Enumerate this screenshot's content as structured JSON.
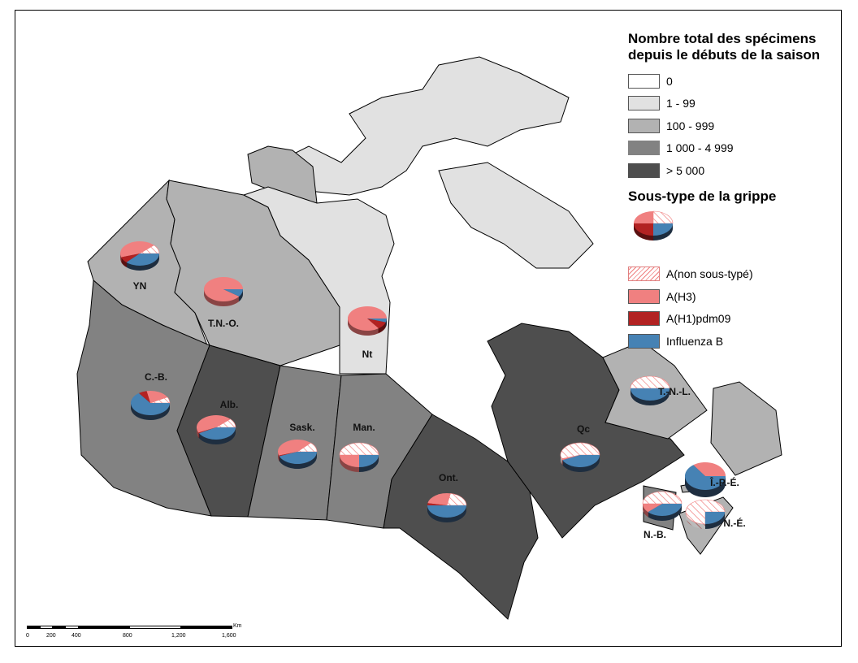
{
  "legend": {
    "title": "Nombre total des spécimens depuis le débuts de la saison",
    "title_line1": "Nombre total des spécimens",
    "title_line2": "depuis le débuts de la saison",
    "classes": [
      {
        "label": "0",
        "color": "#ffffff"
      },
      {
        "label": "1 - 99",
        "color": "#e1e1e1"
      },
      {
        "label": "100 - 999",
        "color": "#b2b2b2"
      },
      {
        "label": "1 000 - 4 999",
        "color": "#828282"
      },
      {
        "label": "> 5 000",
        "color": "#4e4e4e"
      }
    ],
    "subtype_title": "Sous-type de la grippe",
    "subtypes": [
      {
        "label": "A(non sous-typé)",
        "color": "#f08080",
        "pattern": "hatched"
      },
      {
        "label": "A(H3)",
        "color": "#f08080"
      },
      {
        "label": "A(H1)pdm09",
        "color": "#b22222"
      },
      {
        "label": "Influenza B",
        "color": "#4682b4"
      }
    ]
  },
  "regions": [
    {
      "id": "YN",
      "label": "YN",
      "class": "100 - 999",
      "pie": [
        0.12,
        0.43,
        0.08,
        0.37
      ]
    },
    {
      "id": "TNO",
      "label": "T.N.-O.",
      "class": "100 - 999",
      "pie": [
        0,
        0.9,
        0,
        0.1
      ]
    },
    {
      "id": "Nt",
      "label": "Nt",
      "class": "1 - 99",
      "pie": [
        0,
        0.85,
        0.1,
        0.05
      ]
    },
    {
      "id": "CB",
      "label": "C.-B.",
      "class": "1 000 - 4 999",
      "pie": [
        0.08,
        0.2,
        0.07,
        0.65
      ]
    },
    {
      "id": "Alb",
      "label": "Alb.",
      "class": "> 5 000",
      "pie": [
        0.12,
        0.45,
        0.01,
        0.42
      ]
    },
    {
      "id": "Sask",
      "label": "Sask.",
      "class": "1 000 - 4 999",
      "pie": [
        0.13,
        0.42,
        0.01,
        0.44
      ]
    },
    {
      "id": "Man",
      "label": "Man.",
      "class": "1 000 - 4 999",
      "pie": [
        0.5,
        0.25,
        0,
        0.25
      ]
    },
    {
      "id": "Ont",
      "label": "Ont.",
      "class": "> 5 000",
      "pie": [
        0.22,
        0.25,
        0.03,
        0.5
      ]
    },
    {
      "id": "Qc",
      "label": "Qc",
      "class": "> 5 000",
      "pie": [
        0.55,
        0.02,
        0,
        0.43
      ]
    },
    {
      "id": "TNL",
      "label": "T.-N.-L.",
      "class": "100 - 999",
      "pie": [
        0.5,
        0,
        0,
        0.5
      ]
    },
    {
      "id": "IPE",
      "label": "Î.-P.-É.",
      "class": "100 - 999",
      "pie": [
        0,
        0.35,
        0,
        0.65
      ]
    },
    {
      "id": "NB",
      "label": "N.-B.",
      "class": "1 000 - 4 999",
      "pie": [
        0.5,
        0.12,
        0,
        0.38
      ]
    },
    {
      "id": "NS",
      "label": "N.-É.",
      "class": "100 - 999",
      "pie": [
        0.75,
        0,
        0,
        0.25
      ]
    }
  ],
  "legend_pie": [
    0.25,
    0.25,
    0.25,
    0.25
  ],
  "scale": {
    "ticks": [
      "0",
      "200",
      "400",
      "800",
      "1,200",
      "1,600"
    ],
    "unit": "Km"
  }
}
